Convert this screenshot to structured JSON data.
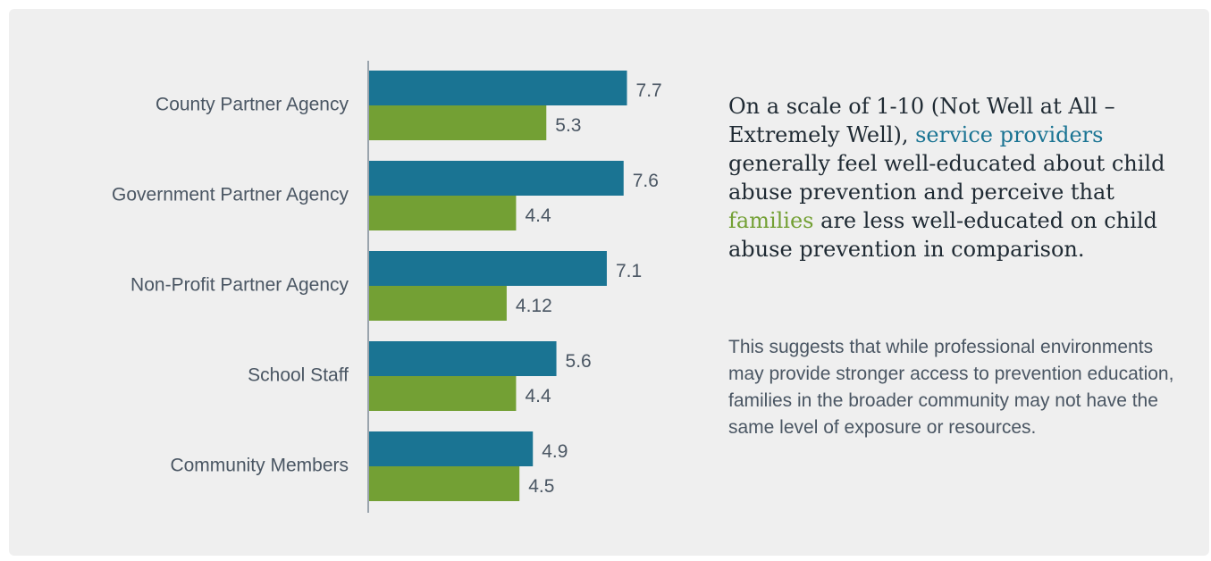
{
  "chart_data": {
    "type": "bar",
    "orientation": "horizontal",
    "categories": [
      "County Partner Agency",
      "Government Partner Agency",
      "Non-Profit Partner Agency",
      "School Staff",
      "Community Members"
    ],
    "series": [
      {
        "values": [
          7.7,
          7.6,
          7.1,
          5.6,
          4.9
        ],
        "labels": [
          "7.7",
          "7.6",
          "7.1",
          "5.6",
          "4.9"
        ],
        "color": "#1a7493"
      },
      {
        "values": [
          5.3,
          4.4,
          4.12,
          4.4,
          4.5
        ],
        "labels": [
          "5.3",
          "4.4",
          "4.12",
          "4.4",
          "4.5"
        ],
        "color": "#73a034"
      }
    ],
    "xlim": [
      0,
      10
    ],
    "grid": false,
    "legend": "none"
  },
  "description": {
    "headline_part1": "On a scale of 1-10 (Not Well at All – Extremely Well), ",
    "headline_highlight_providers": "service providers",
    "headline_part2": " generally feel well-educated about child abuse prevention and perceive that ",
    "headline_highlight_families": "families",
    "headline_part3": " are less well-educated on child abuse prevention in comparison.",
    "subtext": "This suggests that while professional environments may provide stronger access to prevention education, families in the broader community may not have the same level of exposure or resources."
  },
  "colors": {
    "service_providers": "#1a7493",
    "families": "#73a034",
    "background": "#efefef"
  }
}
